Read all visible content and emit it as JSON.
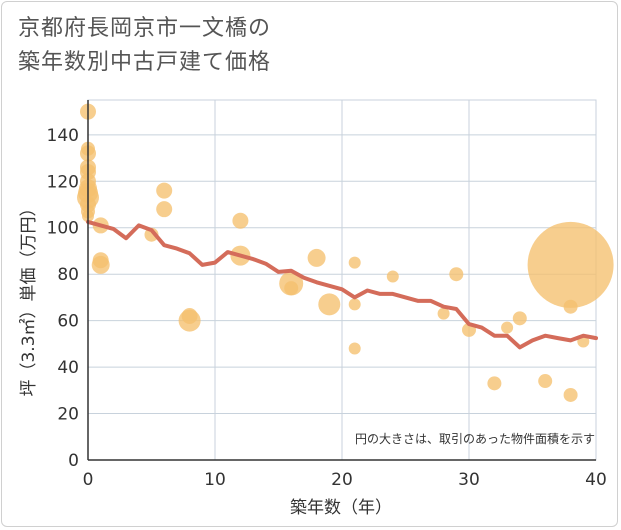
{
  "title_lines": [
    "京都府長岡京市一文橋の",
    "築年数別中古戸建て価格"
  ],
  "chart_data": {
    "type": "scatter",
    "xlabel": "築年数（年）",
    "ylabel": "坪（3.3㎡）単価（万円）",
    "xlim": [
      0,
      40
    ],
    "ylim": [
      0,
      155
    ],
    "xticks": [
      0,
      10,
      20,
      30,
      40
    ],
    "yticks": [
      0,
      20,
      40,
      60,
      80,
      100,
      120,
      140
    ],
    "grid": true,
    "note": "円の大きさは、取引のあった物件面積を示す",
    "colors": {
      "bubble": "#f5c06e",
      "line": "#d46c5a",
      "grid": "#c8d2dc"
    },
    "series": [
      {
        "type": "scatter",
        "points": [
          {
            "x": 0,
            "y": 150,
            "s": 8
          },
          {
            "x": 0,
            "y": 134,
            "s": 7
          },
          {
            "x": 0,
            "y": 132,
            "s": 8
          },
          {
            "x": 0,
            "y": 126,
            "s": 8
          },
          {
            "x": 0,
            "y": 124,
            "s": 8
          },
          {
            "x": 0,
            "y": 120,
            "s": 8
          },
          {
            "x": 0,
            "y": 117,
            "s": 9
          },
          {
            "x": 0,
            "y": 115,
            "s": 10
          },
          {
            "x": 0,
            "y": 113,
            "s": 11
          },
          {
            "x": 0,
            "y": 110,
            "s": 8
          },
          {
            "x": 0,
            "y": 107,
            "s": 7
          },
          {
            "x": 0,
            "y": 105,
            "s": 6
          },
          {
            "x": 1,
            "y": 101,
            "s": 8
          },
          {
            "x": 1,
            "y": 86,
            "s": 8
          },
          {
            "x": 1,
            "y": 84,
            "s": 9
          },
          {
            "x": 5,
            "y": 97,
            "s": 7
          },
          {
            "x": 6,
            "y": 116,
            "s": 8
          },
          {
            "x": 6,
            "y": 108,
            "s": 8
          },
          {
            "x": 8,
            "y": 62,
            "s": 8
          },
          {
            "x": 8,
            "y": 60,
            "s": 11
          },
          {
            "x": 12,
            "y": 103,
            "s": 8
          },
          {
            "x": 12,
            "y": 88,
            "s": 10
          },
          {
            "x": 16,
            "y": 76,
            "s": 12
          },
          {
            "x": 16,
            "y": 74,
            "s": 7
          },
          {
            "x": 18,
            "y": 87,
            "s": 9
          },
          {
            "x": 19,
            "y": 67,
            "s": 11
          },
          {
            "x": 21,
            "y": 85,
            "s": 6
          },
          {
            "x": 21,
            "y": 67,
            "s": 6
          },
          {
            "x": 21,
            "y": 48,
            "s": 6
          },
          {
            "x": 24,
            "y": 79,
            "s": 6
          },
          {
            "x": 28,
            "y": 63,
            "s": 6
          },
          {
            "x": 29,
            "y": 80,
            "s": 7
          },
          {
            "x": 30,
            "y": 56,
            "s": 7
          },
          {
            "x": 32,
            "y": 33,
            "s": 7
          },
          {
            "x": 33,
            "y": 57,
            "s": 6
          },
          {
            "x": 34,
            "y": 61,
            "s": 7
          },
          {
            "x": 36,
            "y": 34,
            "s": 7
          },
          {
            "x": 38,
            "y": 84,
            "s": 43
          },
          {
            "x": 38,
            "y": 66,
            "s": 7
          },
          {
            "x": 38,
            "y": 28,
            "s": 7
          },
          {
            "x": 39,
            "y": 51,
            "s": 6
          }
        ]
      },
      {
        "type": "line",
        "x": [
          0,
          1,
          2,
          3,
          4,
          5,
          6,
          7,
          8,
          9,
          10,
          11,
          12,
          13,
          14,
          15,
          16,
          17,
          18,
          19,
          20,
          21,
          22,
          23,
          24,
          25,
          26,
          27,
          28,
          29,
          30,
          31,
          32,
          33,
          34,
          35,
          36,
          37,
          38,
          39,
          40
        ],
        "y": [
          102.5,
          101,
          99.5,
          95.5,
          101,
          99,
          92.5,
          91,
          89,
          84,
          85,
          89.5,
          88,
          86.5,
          84.5,
          81,
          81.5,
          78.5,
          76.5,
          75,
          73.5,
          70,
          73,
          71.5,
          71.5,
          70,
          68.5,
          68.5,
          66,
          65,
          58.5,
          57,
          53.5,
          53.5,
          48.5,
          51.5,
          53.5,
          52.5,
          51.5,
          53.5,
          52.5
        ]
      }
    ]
  }
}
